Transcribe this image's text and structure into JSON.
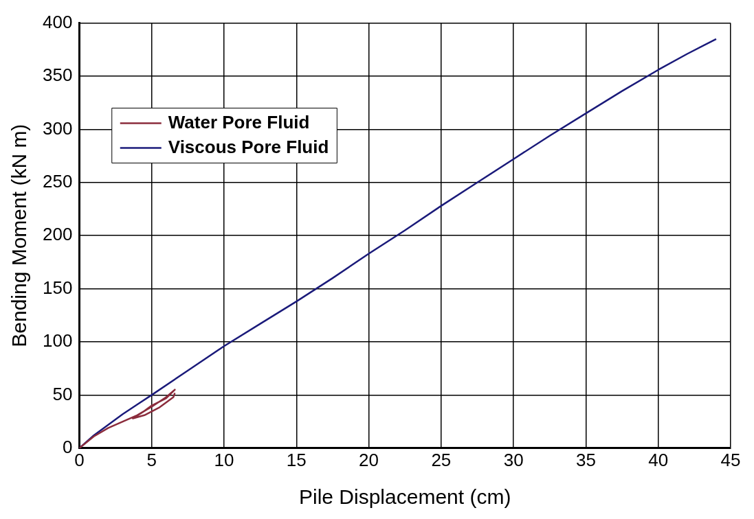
{
  "chart_data": {
    "type": "line",
    "xlabel": "Pile Displacement (cm)",
    "ylabel": "Bending Moment (kN m)",
    "xlim": [
      0,
      45
    ],
    "xticks": [
      0,
      5,
      10,
      15,
      20,
      25,
      30,
      35,
      40,
      45
    ],
    "ylim": [
      0,
      400
    ],
    "yticks": [
      0,
      50,
      100,
      150,
      200,
      250,
      300,
      350,
      400
    ],
    "grid": true,
    "legend": "top left",
    "marker": "none",
    "line_style": "solid",
    "series": [
      {
        "name": "Water Pore Fluid",
        "color": "#8b2c3c",
        "x": [
          0,
          1,
          2,
          3,
          4,
          5,
          6,
          6.6,
          6,
          5,
          4.5,
          3.7,
          4.5,
          5.5,
          6.5,
          6.6
        ],
        "values": [
          0,
          11,
          19,
          25,
          31,
          39,
          48,
          55,
          47,
          40,
          35,
          28,
          31,
          38,
          48,
          52
        ]
      },
      {
        "name": "Viscous Pore Fluid",
        "color": "#1a1a7a",
        "x": [
          0,
          1,
          2,
          3,
          4,
          5,
          7.5,
          10,
          12.5,
          15,
          17.5,
          20,
          22.5,
          25,
          27.5,
          30,
          32.5,
          35,
          37.5,
          40,
          42,
          44
        ],
        "values": [
          0,
          12,
          22,
          32,
          41,
          50,
          73,
          96,
          117,
          138,
          160,
          183,
          205,
          228,
          250,
          272,
          294,
          315,
          336,
          356,
          371,
          385
        ]
      }
    ]
  }
}
